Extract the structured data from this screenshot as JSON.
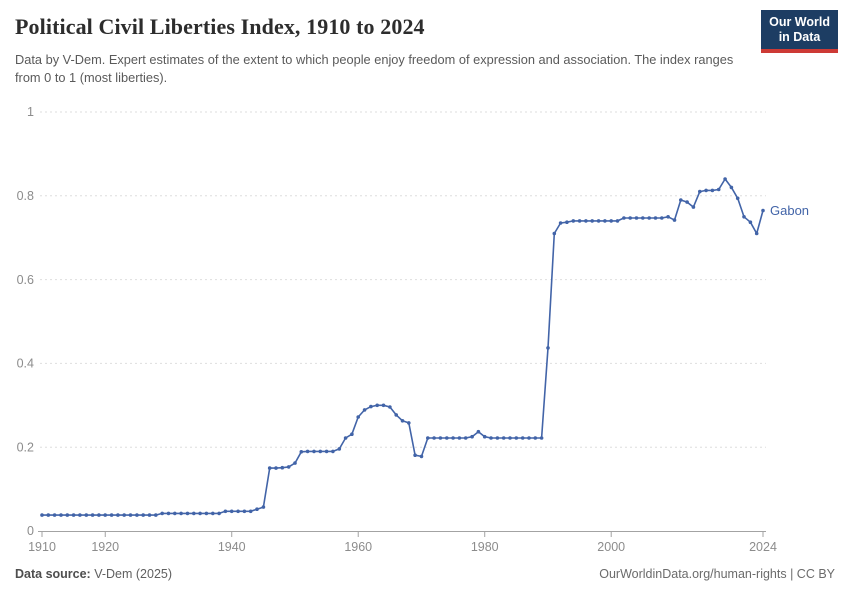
{
  "header": {
    "title": "Political Civil Liberties Index, 1910 to 2024",
    "subtitle": "Data by V-Dem. Expert estimates of the extent to which people enjoy freedom of expression and association. The index ranges from 0 to 1 (most liberties).",
    "logo": {
      "line1": "Our World",
      "line2": "in Data",
      "bg_color": "#1d3d63",
      "accent_color": "#cd3a35"
    }
  },
  "chart_data": {
    "type": "line",
    "title": "Political Civil Liberties Index, 1910 to 2024",
    "xlabel": "",
    "ylabel": "",
    "xlim": [
      1910,
      2024
    ],
    "ylim": [
      0,
      1
    ],
    "x_ticks": [
      1910,
      1920,
      1940,
      1960,
      1980,
      2000,
      2024
    ],
    "y_ticks": [
      0,
      0.2,
      0.4,
      0.6,
      0.8,
      1
    ],
    "grid": "horizontal-dashed",
    "legend_position": "end-of-line-label",
    "grid_color": "#dedede",
    "axis_color": "#a3a3a3",
    "tick_label_color": "#8c8c8c",
    "series": [
      {
        "name": "Gabon",
        "color": "#4264a8",
        "x": [
          1910,
          1911,
          1912,
          1913,
          1914,
          1915,
          1916,
          1917,
          1918,
          1919,
          1920,
          1921,
          1922,
          1923,
          1924,
          1925,
          1926,
          1927,
          1928,
          1929,
          1930,
          1931,
          1932,
          1933,
          1934,
          1935,
          1936,
          1937,
          1938,
          1939,
          1940,
          1941,
          1942,
          1943,
          1944,
          1945,
          1946,
          1947,
          1948,
          1949,
          1950,
          1951,
          1952,
          1953,
          1954,
          1955,
          1956,
          1957,
          1958,
          1959,
          1960,
          1961,
          1962,
          1963,
          1964,
          1965,
          1966,
          1967,
          1968,
          1969,
          1970,
          1971,
          1972,
          1973,
          1974,
          1975,
          1976,
          1977,
          1978,
          1979,
          1980,
          1981,
          1982,
          1983,
          1984,
          1985,
          1986,
          1987,
          1988,
          1989,
          1990,
          1991,
          1992,
          1993,
          1994,
          1995,
          1996,
          1997,
          1998,
          1999,
          2000,
          2001,
          2002,
          2003,
          2004,
          2005,
          2006,
          2007,
          2008,
          2009,
          2010,
          2011,
          2012,
          2013,
          2014,
          2015,
          2016,
          2017,
          2018,
          2019,
          2020,
          2021,
          2022,
          2023,
          2024
        ],
        "values": [
          0.038,
          0.038,
          0.038,
          0.038,
          0.038,
          0.038,
          0.038,
          0.038,
          0.038,
          0.038,
          0.038,
          0.038,
          0.038,
          0.038,
          0.038,
          0.038,
          0.038,
          0.038,
          0.038,
          0.042,
          0.042,
          0.042,
          0.042,
          0.042,
          0.042,
          0.042,
          0.042,
          0.042,
          0.042,
          0.047,
          0.047,
          0.047,
          0.047,
          0.047,
          0.052,
          0.057,
          0.15,
          0.15,
          0.151,
          0.153,
          0.162,
          0.189,
          0.19,
          0.19,
          0.19,
          0.19,
          0.19,
          0.196,
          0.222,
          0.231,
          0.272,
          0.289,
          0.297,
          0.3,
          0.3,
          0.296,
          0.277,
          0.263,
          0.258,
          0.181,
          0.178,
          0.222,
          0.222,
          0.222,
          0.222,
          0.222,
          0.222,
          0.222,
          0.225,
          0.237,
          0.225,
          0.222,
          0.222,
          0.222,
          0.222,
          0.222,
          0.222,
          0.222,
          0.222,
          0.222,
          0.437,
          0.71,
          0.735,
          0.737,
          0.74,
          0.74,
          0.74,
          0.74,
          0.74,
          0.74,
          0.74,
          0.74,
          0.747,
          0.747,
          0.747,
          0.747,
          0.747,
          0.747,
          0.747,
          0.75,
          0.742,
          0.79,
          0.785,
          0.773,
          0.81,
          0.813,
          0.813,
          0.815,
          0.84,
          0.82,
          0.794,
          0.75,
          0.737,
          0.71,
          0.765
        ]
      }
    ]
  },
  "footer": {
    "source_label": "Data source:",
    "source_value": " V-Dem (2025)",
    "right_text": "OurWorldinData.org/human-rights | CC BY"
  }
}
